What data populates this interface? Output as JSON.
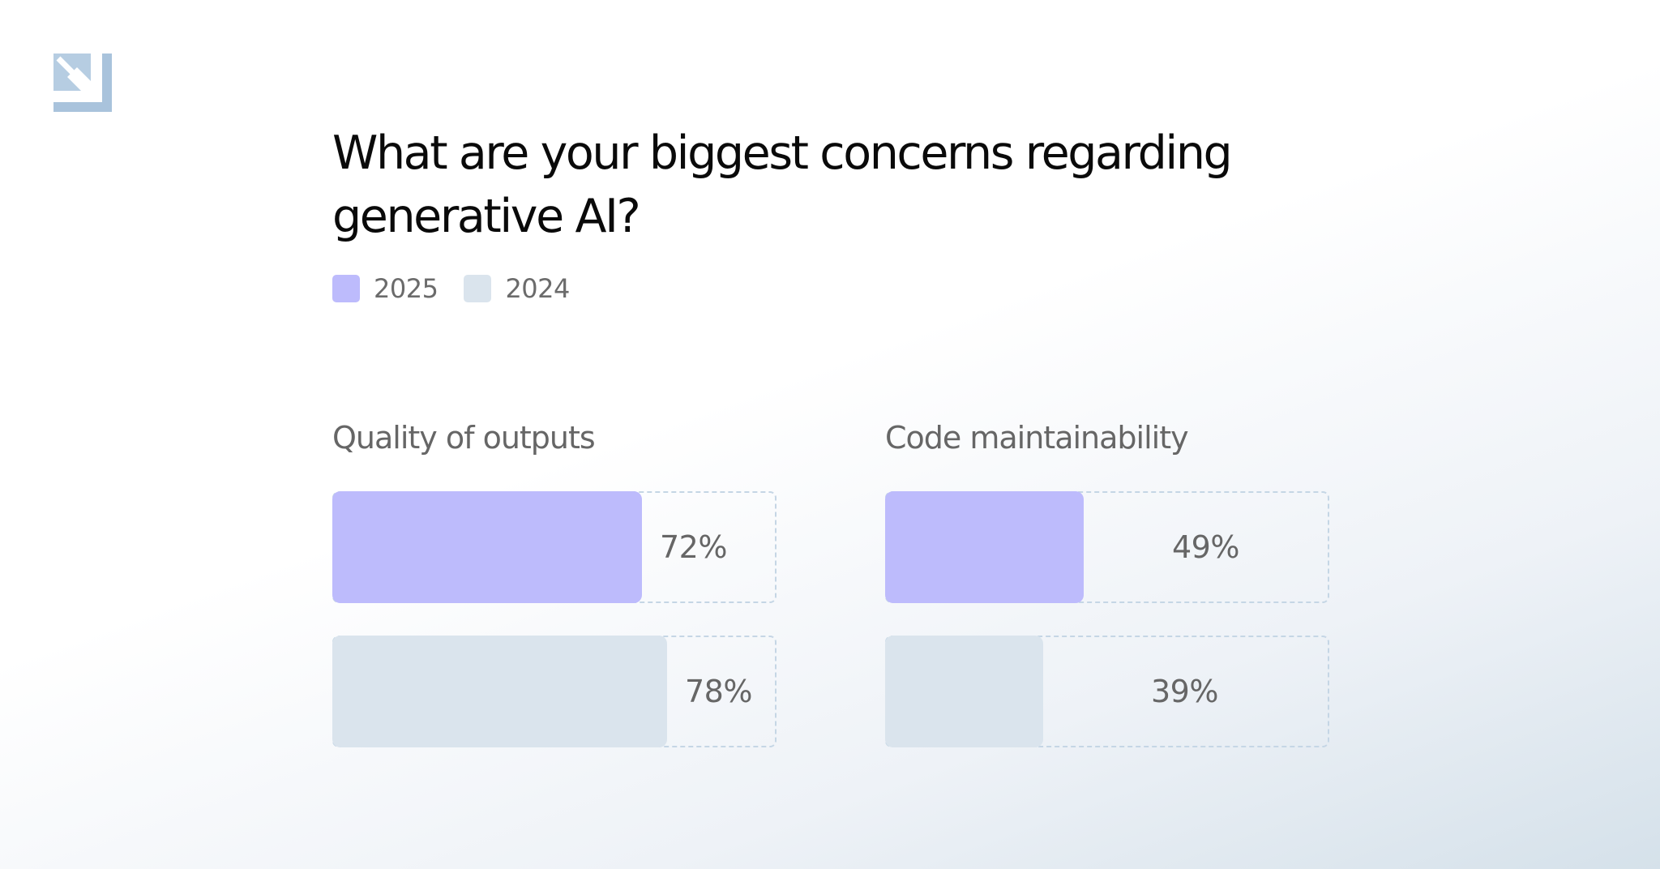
{
  "title": "What are your biggest concerns regarding generative AI?",
  "legend": [
    {
      "label": "2025",
      "color": "#bdbbfc"
    },
    {
      "label": "2024",
      "color": "#dae4ed"
    }
  ],
  "logo": {
    "icon": "arrow-down-right-logo-icon",
    "color": "#a9c3dc"
  },
  "chart_data": [
    {
      "type": "bar",
      "orientation": "horizontal",
      "title": "Quality of outputs",
      "categories": [
        "2025",
        "2024"
      ],
      "values": [
        72,
        78
      ],
      "labels": [
        "72%",
        "78%"
      ],
      "colors": [
        "#bdbbfc",
        "#dae4ed"
      ],
      "xlim": [
        0,
        100
      ]
    },
    {
      "type": "bar",
      "orientation": "horizontal",
      "title": "Code maintainability",
      "categories": [
        "2025",
        "2024"
      ],
      "values": [
        49,
        39
      ],
      "labels": [
        "49%",
        "39%"
      ],
      "colors": [
        "#bdbbfc",
        "#dae4ed"
      ],
      "xlim": [
        0,
        100
      ]
    }
  ]
}
